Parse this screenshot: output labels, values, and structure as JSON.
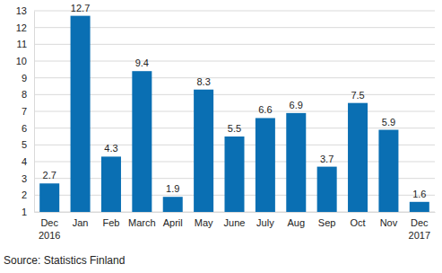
{
  "chart_data": {
    "type": "bar",
    "categories": [
      "Dec\n2016",
      "Jan",
      "Feb",
      "March",
      "April",
      "May",
      "June",
      "July",
      "Aug",
      "Sep",
      "Oct",
      "Nov",
      "Dec\n2017"
    ],
    "values": [
      2.7,
      12.7,
      4.3,
      9.4,
      1.9,
      8.3,
      5.5,
      6.6,
      6.9,
      3.7,
      7.5,
      5.9,
      1.6
    ],
    "color": "#0a6fb3",
    "ylim": [
      1,
      13
    ],
    "yticks": [
      1,
      2,
      3,
      4,
      5,
      6,
      7,
      8,
      9,
      10,
      11,
      12,
      13
    ],
    "grid": true,
    "data_labels": true,
    "annotations": [
      "Source: Statistics Finland"
    ]
  }
}
